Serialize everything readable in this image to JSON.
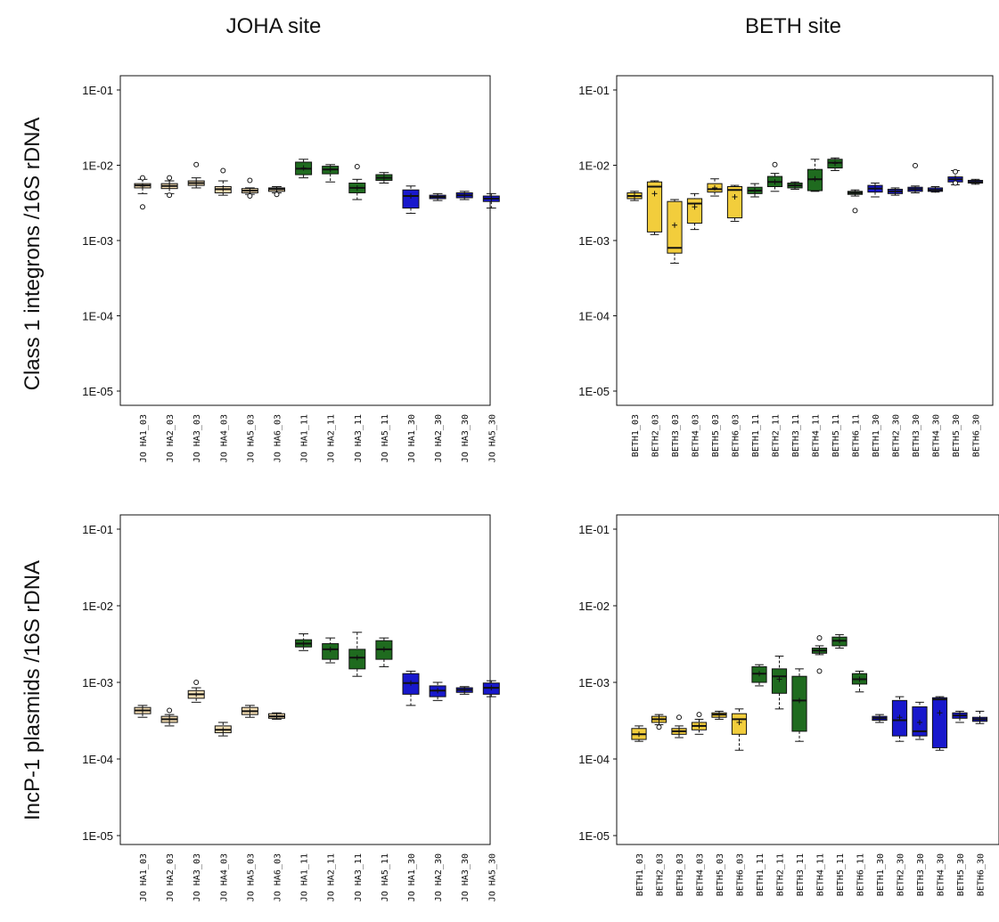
{
  "titles": {
    "col_left": "JOHA site",
    "col_right": "BETH site",
    "row_top": "Class 1 integrons /16S rDNA",
    "row_bottom": "IncP-1 plasmids /16S rDNA"
  },
  "colors": {
    "tan": "#f5deb3",
    "yellow": "#f2cd3c",
    "green": "#1f6b1f",
    "blue": "#1818cc",
    "outline": "#111111"
  },
  "chart_data": [
    {
      "type": "box",
      "panel": "JOHA site - Class 1 integrons /16S rDNA",
      "yscale": "log",
      "ylim": [
        1e-05,
        0.1
      ],
      "yticks": [
        "1E-01",
        "1E-02",
        "1E-03",
        "1E-04",
        "1E-05"
      ],
      "boxes": [
        {
          "label": "JO HA1_03",
          "color": "tan",
          "q1": 0.005,
          "median": 0.0054,
          "q3": 0.0057,
          "min": 0.0042,
          "max": 0.0065,
          "mean": 0.0053,
          "outliers": [
            0.0028,
            0.0068
          ]
        },
        {
          "label": "JO HA2_03",
          "color": "tan",
          "q1": 0.0049,
          "median": 0.0053,
          "q3": 0.0057,
          "min": 0.0042,
          "max": 0.0062,
          "mean": 0.0053,
          "outliers": [
            0.0068,
            0.004
          ]
        },
        {
          "label": "JO HA3_03",
          "color": "tan",
          "q1": 0.0054,
          "median": 0.0058,
          "q3": 0.0062,
          "min": 0.005,
          "max": 0.0068,
          "mean": 0.0058,
          "outliers": [
            0.0102
          ]
        },
        {
          "label": "JO HA4_03",
          "color": "tan",
          "q1": 0.0043,
          "median": 0.0048,
          "q3": 0.0052,
          "min": 0.004,
          "max": 0.0062,
          "mean": 0.0048,
          "outliers": [
            0.0085
          ]
        },
        {
          "label": "JO HA5_03",
          "color": "tan",
          "q1": 0.0043,
          "median": 0.0046,
          "q3": 0.0049,
          "min": 0.0041,
          "max": 0.005,
          "mean": 0.0046,
          "outliers": [
            0.0063,
            0.0039
          ]
        },
        {
          "label": "JO HA6_03",
          "color": "tan",
          "q1": 0.0045,
          "median": 0.0048,
          "q3": 0.005,
          "min": 0.0043,
          "max": 0.0052,
          "mean": 0.0048,
          "outliers": [
            0.0041
          ]
        },
        {
          "label": "JO HA1_11",
          "color": "green",
          "q1": 0.0075,
          "median": 0.009,
          "q3": 0.011,
          "min": 0.0068,
          "max": 0.012,
          "mean": 0.0092,
          "outliers": []
        },
        {
          "label": "JO HA2_11",
          "color": "green",
          "q1": 0.0077,
          "median": 0.0088,
          "q3": 0.0097,
          "min": 0.006,
          "max": 0.0102,
          "mean": 0.0088,
          "outliers": []
        },
        {
          "label": "JO HA3_11",
          "color": "green",
          "q1": 0.0043,
          "median": 0.005,
          "q3": 0.0058,
          "min": 0.0035,
          "max": 0.0065,
          "mean": 0.005,
          "outliers": [
            0.0096
          ]
        },
        {
          "label": "JO HA5_11",
          "color": "green",
          "q1": 0.0063,
          "median": 0.0068,
          "q3": 0.0075,
          "min": 0.0058,
          "max": 0.008,
          "mean": 0.0068,
          "outliers": []
        },
        {
          "label": "JO HA1_30",
          "color": "blue",
          "q1": 0.0027,
          "median": 0.0039,
          "q3": 0.0047,
          "min": 0.0023,
          "max": 0.0053,
          "mean": 0.0039,
          "outliers": []
        },
        {
          "label": "JO HA2_30",
          "color": "blue",
          "q1": 0.0036,
          "median": 0.0038,
          "q3": 0.004,
          "min": 0.0034,
          "max": 0.0042,
          "mean": 0.0038,
          "outliers": []
        },
        {
          "label": "JO HA3_30",
          "color": "blue",
          "q1": 0.0037,
          "median": 0.004,
          "q3": 0.0043,
          "min": 0.0035,
          "max": 0.0045,
          "mean": 0.004,
          "outliers": []
        },
        {
          "label": "JO HA5_30",
          "color": "blue",
          "q1": 0.0033,
          "median": 0.0036,
          "q3": 0.0039,
          "min": 0.0027,
          "max": 0.0042,
          "mean": 0.0036,
          "outliers": []
        }
      ]
    },
    {
      "type": "box",
      "panel": "BETH site - Class 1 integrons /16S rDNA",
      "yscale": "log",
      "ylim": [
        1e-05,
        0.1
      ],
      "yticks": [
        "1E-01",
        "1E-02",
        "1E-03",
        "1E-04",
        "1E-05"
      ],
      "boxes": [
        {
          "label": "BETH1_03",
          "color": "yellow",
          "q1": 0.0036,
          "median": 0.0039,
          "q3": 0.0043,
          "min": 0.0034,
          "max": 0.0045,
          "mean": 0.0039,
          "outliers": []
        },
        {
          "label": "BETH2_03",
          "color": "yellow",
          "q1": 0.0013,
          "median": 0.0052,
          "q3": 0.006,
          "min": 0.0012,
          "max": 0.0062,
          "mean": 0.0042,
          "outliers": []
        },
        {
          "label": "BETH3_03",
          "color": "yellow",
          "q1": 0.00068,
          "median": 0.0008,
          "q3": 0.0033,
          "min": 0.0005,
          "max": 0.0035,
          "mean": 0.0016,
          "outliers": []
        },
        {
          "label": "BETH4_03",
          "color": "yellow",
          "q1": 0.0017,
          "median": 0.0031,
          "q3": 0.0036,
          "min": 0.0014,
          "max": 0.0042,
          "mean": 0.0028,
          "outliers": []
        },
        {
          "label": "BETH5_03",
          "color": "yellow",
          "q1": 0.0044,
          "median": 0.0048,
          "q3": 0.0057,
          "min": 0.0039,
          "max": 0.0066,
          "mean": 0.005,
          "outliers": []
        },
        {
          "label": "BETH6_03",
          "color": "yellow",
          "q1": 0.002,
          "median": 0.0047,
          "q3": 0.0052,
          "min": 0.0018,
          "max": 0.0054,
          "mean": 0.0038,
          "outliers": []
        },
        {
          "label": "BETH1_11",
          "color": "green",
          "q1": 0.0042,
          "median": 0.0046,
          "q3": 0.0051,
          "min": 0.0038,
          "max": 0.0057,
          "mean": 0.0046,
          "outliers": []
        },
        {
          "label": "BETH2_11",
          "color": "green",
          "q1": 0.0052,
          "median": 0.006,
          "q3": 0.0071,
          "min": 0.0045,
          "max": 0.0078,
          "mean": 0.006,
          "outliers": [
            0.0102
          ]
        },
        {
          "label": "BETH3_11",
          "color": "green",
          "q1": 0.005,
          "median": 0.0054,
          "q3": 0.0058,
          "min": 0.0048,
          "max": 0.006,
          "mean": 0.0054,
          "outliers": []
        },
        {
          "label": "BETH4_11",
          "color": "green",
          "q1": 0.0046,
          "median": 0.0065,
          "q3": 0.0088,
          "min": 0.0045,
          "max": 0.012,
          "mean": 0.0066,
          "outliers": []
        },
        {
          "label": "BETH5_11",
          "color": "green",
          "q1": 0.0092,
          "median": 0.0108,
          "q3": 0.012,
          "min": 0.0085,
          "max": 0.0125,
          "mean": 0.0106,
          "outliers": []
        },
        {
          "label": "BETH6_11",
          "color": "green",
          "q1": 0.0041,
          "median": 0.0043,
          "q3": 0.0045,
          "min": 0.0039,
          "max": 0.0047,
          "mean": 0.0043,
          "outliers": [
            0.0025
          ]
        },
        {
          "label": "BETH1_30",
          "color": "blue",
          "q1": 0.0044,
          "median": 0.0049,
          "q3": 0.0054,
          "min": 0.0038,
          "max": 0.0058,
          "mean": 0.0049,
          "outliers": []
        },
        {
          "label": "BETH2_30",
          "color": "blue",
          "q1": 0.0042,
          "median": 0.0045,
          "q3": 0.0048,
          "min": 0.004,
          "max": 0.005,
          "mean": 0.0045,
          "outliers": []
        },
        {
          "label": "BETH3_30",
          "color": "blue",
          "q1": 0.0045,
          "median": 0.0048,
          "q3": 0.0051,
          "min": 0.0043,
          "max": 0.0053,
          "mean": 0.0048,
          "outliers": [
            0.0099
          ]
        },
        {
          "label": "BETH4_30",
          "color": "blue",
          "q1": 0.0045,
          "median": 0.0047,
          "q3": 0.005,
          "min": 0.0044,
          "max": 0.0052,
          "mean": 0.0047,
          "outliers": []
        },
        {
          "label": "BETH5_30",
          "color": "blue",
          "q1": 0.006,
          "median": 0.0065,
          "q3": 0.007,
          "min": 0.0055,
          "max": 0.0085,
          "mean": 0.0065,
          "outliers": [
            0.0082,
            0.0058
          ]
        },
        {
          "label": "BETH6_30",
          "color": "blue",
          "q1": 0.0058,
          "median": 0.006,
          "q3": 0.0063,
          "min": 0.0056,
          "max": 0.0065,
          "mean": 0.006,
          "outliers": []
        }
      ]
    },
    {
      "type": "box",
      "panel": "JOHA site - IncP-1 plasmids /16S rDNA",
      "yscale": "log",
      "ylim": [
        1e-05,
        0.1
      ],
      "yticks": [
        "1E-01",
        "1E-02",
        "1E-03",
        "1E-04",
        "1E-05"
      ],
      "boxes": [
        {
          "label": "JO HA1_03",
          "color": "tan",
          "q1": 0.00039,
          "median": 0.00043,
          "q3": 0.00047,
          "min": 0.00035,
          "max": 0.0005,
          "mean": 0.00043,
          "outliers": []
        },
        {
          "label": "JO HA2_03",
          "color": "tan",
          "q1": 0.0003,
          "median": 0.00033,
          "q3": 0.00036,
          "min": 0.00027,
          "max": 0.00038,
          "mean": 0.00033,
          "outliers": [
            0.00043
          ]
        },
        {
          "label": "JO HA3_03",
          "color": "tan",
          "q1": 0.00062,
          "median": 0.0007,
          "q3": 0.00078,
          "min": 0.00055,
          "max": 0.00085,
          "mean": 0.0007,
          "outliers": [
            0.001
          ]
        },
        {
          "label": "JO HA4_03",
          "color": "tan",
          "q1": 0.00022,
          "median": 0.00024,
          "q3": 0.00027,
          "min": 0.0002,
          "max": 0.0003,
          "mean": 0.00024,
          "outliers": []
        },
        {
          "label": "JO HA5_03",
          "color": "tan",
          "q1": 0.00038,
          "median": 0.00042,
          "q3": 0.00047,
          "min": 0.00035,
          "max": 0.0005,
          "mean": 0.00042,
          "outliers": []
        },
        {
          "label": "JO HA6_03",
          "color": "tan",
          "q1": 0.00034,
          "median": 0.00036,
          "q3": 0.00039,
          "min": 0.00033,
          "max": 0.0004,
          "mean": 0.00036,
          "outliers": []
        },
        {
          "label": "JO HA1_11",
          "color": "green",
          "q1": 0.0029,
          "median": 0.0032,
          "q3": 0.0036,
          "min": 0.0026,
          "max": 0.0043,
          "mean": 0.0032,
          "outliers": []
        },
        {
          "label": "JO HA2_11",
          "color": "green",
          "q1": 0.002,
          "median": 0.0027,
          "q3": 0.0032,
          "min": 0.0018,
          "max": 0.0038,
          "mean": 0.0027,
          "outliers": []
        },
        {
          "label": "JO HA3_11",
          "color": "green",
          "q1": 0.0015,
          "median": 0.0021,
          "q3": 0.0027,
          "min": 0.0012,
          "max": 0.0045,
          "mean": 0.0021,
          "outliers": []
        },
        {
          "label": "JO HA5_11",
          "color": "green",
          "q1": 0.002,
          "median": 0.0027,
          "q3": 0.0035,
          "min": 0.0016,
          "max": 0.0038,
          "mean": 0.0027,
          "outliers": []
        },
        {
          "label": "JO HA1_30",
          "color": "blue",
          "q1": 0.0007,
          "median": 0.00098,
          "q3": 0.0013,
          "min": 0.0005,
          "max": 0.0014,
          "mean": 0.00098,
          "outliers": []
        },
        {
          "label": "JO HA2_30",
          "color": "blue",
          "q1": 0.00065,
          "median": 0.00078,
          "q3": 0.0009,
          "min": 0.00058,
          "max": 0.001,
          "mean": 0.00078,
          "outliers": []
        },
        {
          "label": "JO HA3_30",
          "color": "blue",
          "q1": 0.00074,
          "median": 0.0008,
          "q3": 0.00085,
          "min": 0.0007,
          "max": 0.00088,
          "mean": 0.0008,
          "outliers": []
        },
        {
          "label": "JO HA5_30",
          "color": "blue",
          "q1": 0.0007,
          "median": 0.00085,
          "q3": 0.00098,
          "min": 0.00065,
          "max": 0.00105,
          "mean": 0.00085,
          "outliers": []
        }
      ]
    },
    {
      "type": "box",
      "panel": "BETH site - IncP-1 plasmids /16S rDNA",
      "yscale": "log",
      "ylim": [
        1e-05,
        0.1
      ],
      "yticks": [
        "1E-01",
        "1E-02",
        "1E-03",
        "1E-04",
        "1E-05"
      ],
      "boxes": [
        {
          "label": "BETH1_03",
          "color": "yellow",
          "q1": 0.00018,
          "median": 0.00021,
          "q3": 0.00025,
          "min": 0.00017,
          "max": 0.00027,
          "mean": 0.00021,
          "outliers": []
        },
        {
          "label": "BETH2_03",
          "color": "yellow",
          "q1": 0.0003,
          "median": 0.00033,
          "q3": 0.00036,
          "min": 0.00028,
          "max": 0.00038,
          "mean": 0.00033,
          "outliers": [
            0.00026
          ]
        },
        {
          "label": "BETH3_03",
          "color": "yellow",
          "q1": 0.00021,
          "median": 0.00023,
          "q3": 0.00025,
          "min": 0.00019,
          "max": 0.00027,
          "mean": 0.00023,
          "outliers": [
            0.00035
          ]
        },
        {
          "label": "BETH4_03",
          "color": "yellow",
          "q1": 0.00024,
          "median": 0.00027,
          "q3": 0.0003,
          "min": 0.00021,
          "max": 0.00033,
          "mean": 0.00027,
          "outliers": [
            0.00038
          ]
        },
        {
          "label": "BETH5_03",
          "color": "yellow",
          "q1": 0.00035,
          "median": 0.00038,
          "q3": 0.0004,
          "min": 0.00033,
          "max": 0.00042,
          "mean": 0.00038,
          "outliers": []
        },
        {
          "label": "BETH6_03",
          "color": "yellow",
          "q1": 0.00021,
          "median": 0.00033,
          "q3": 0.00039,
          "min": 0.00013,
          "max": 0.00045,
          "mean": 0.0003,
          "outliers": []
        },
        {
          "label": "BETH1_11",
          "color": "green",
          "q1": 0.001,
          "median": 0.0013,
          "q3": 0.0016,
          "min": 0.0009,
          "max": 0.0017,
          "mean": 0.0013,
          "outliers": []
        },
        {
          "label": "BETH2_11",
          "color": "green",
          "q1": 0.00072,
          "median": 0.0012,
          "q3": 0.0015,
          "min": 0.00045,
          "max": 0.0022,
          "mean": 0.0011,
          "outliers": []
        },
        {
          "label": "BETH3_11",
          "color": "green",
          "q1": 0.00023,
          "median": 0.00058,
          "q3": 0.0012,
          "min": 0.00017,
          "max": 0.0015,
          "mean": 0.00058,
          "outliers": []
        },
        {
          "label": "BETH4_11",
          "color": "green",
          "q1": 0.0024,
          "median": 0.0026,
          "q3": 0.0028,
          "min": 0.0023,
          "max": 0.003,
          "mean": 0.0026,
          "outliers": [
            0.0038,
            0.0014
          ]
        },
        {
          "label": "BETH5_11",
          "color": "green",
          "q1": 0.003,
          "median": 0.0035,
          "q3": 0.0039,
          "min": 0.0028,
          "max": 0.0042,
          "mean": 0.0035,
          "outliers": []
        },
        {
          "label": "BETH6_11",
          "color": "green",
          "q1": 0.00095,
          "median": 0.0011,
          "q3": 0.0013,
          "min": 0.00075,
          "max": 0.0014,
          "mean": 0.0011,
          "outliers": []
        },
        {
          "label": "BETH1_30",
          "color": "blue",
          "q1": 0.00032,
          "median": 0.00034,
          "q3": 0.00036,
          "min": 0.0003,
          "max": 0.00038,
          "mean": 0.00034,
          "outliers": []
        },
        {
          "label": "BETH2_30",
          "color": "blue",
          "q1": 0.0002,
          "median": 0.00032,
          "q3": 0.00058,
          "min": 0.00017,
          "max": 0.00065,
          "mean": 0.00035,
          "outliers": []
        },
        {
          "label": "BETH3_30",
          "color": "blue",
          "q1": 0.0002,
          "median": 0.00023,
          "q3": 0.00048,
          "min": 0.00018,
          "max": 0.00055,
          "mean": 0.0003,
          "outliers": []
        },
        {
          "label": "BETH4_30",
          "color": "blue",
          "q1": 0.00014,
          "median": 0.0006,
          "q3": 0.00063,
          "min": 0.00013,
          "max": 0.00065,
          "mean": 0.0004,
          "outliers": []
        },
        {
          "label": "BETH5_30",
          "color": "blue",
          "q1": 0.00034,
          "median": 0.00037,
          "q3": 0.0004,
          "min": 0.0003,
          "max": 0.00042,
          "mean": 0.00037,
          "outliers": []
        },
        {
          "label": "BETH6_30",
          "color": "blue",
          "q1": 0.00031,
          "median": 0.00033,
          "q3": 0.00035,
          "min": 0.00029,
          "max": 0.00042,
          "mean": 0.00033,
          "outliers": []
        }
      ]
    }
  ]
}
